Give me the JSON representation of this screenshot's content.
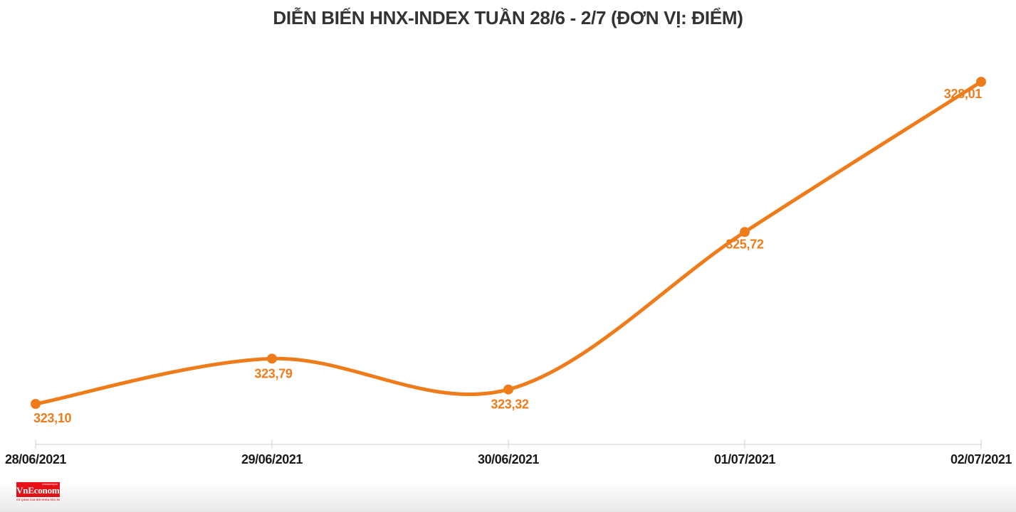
{
  "chart_data": {
    "type": "line",
    "title": "DIỄN BIẾN HNX-INDEX TUẦN 28/6 - 2/7 (ĐƠN VỊ: ĐIỂM)",
    "categories": [
      "28/06/2021",
      "29/06/2021",
      "30/06/2021",
      "01/07/2021",
      "02/07/2021"
    ],
    "series": [
      {
        "name": "HNX-Index",
        "values": [
          323.1,
          323.79,
          323.32,
          325.72,
          328.01
        ]
      }
    ],
    "point_labels": [
      "323,10",
      "323,79",
      "323,32",
      "325,72",
      "328,01"
    ],
    "smooth": true,
    "marker": "circle",
    "grid": false,
    "legend_position": "none",
    "y_axis_visible": false,
    "ylim": [
      322.5,
      328.6
    ],
    "line_color": "#ee7c1a",
    "point_label_color": "#ee7c1a",
    "axis_color": "#cccccc",
    "axis_label_color": "#1a1a1a"
  },
  "logo": {
    "name": "VnEconomy",
    "small_top": "vneconomy.vn",
    "tagline": "CƠ QUAN CỦA HỘI KHOA HỌC KINH TẾ VIỆT NAM",
    "background_color": "#e8121a",
    "text_color": "#ffffff"
  }
}
